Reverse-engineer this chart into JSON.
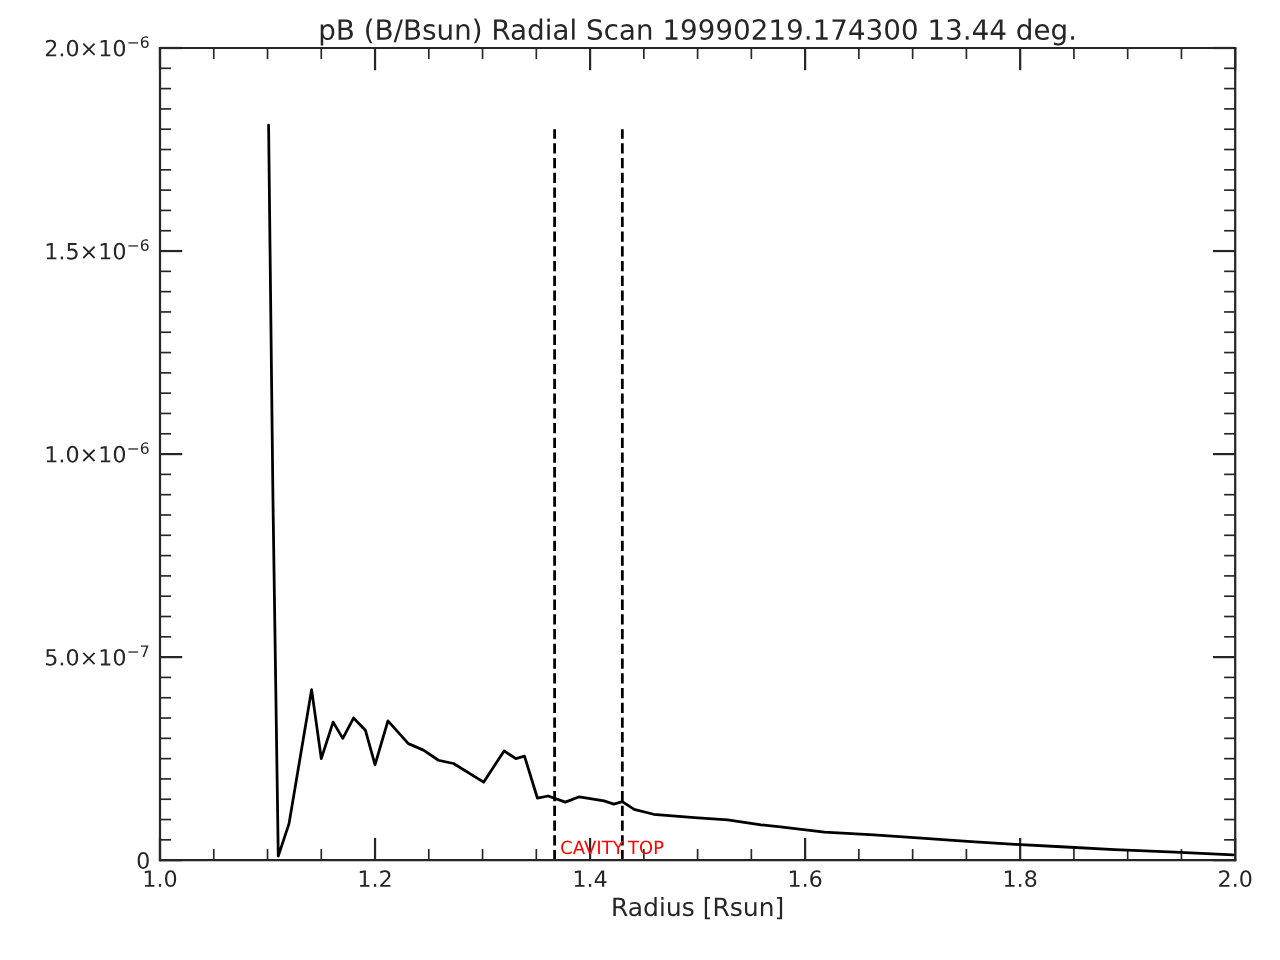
{
  "chart_data": {
    "type": "line",
    "title": "pB (B/Bsun) Radial Scan 19990219.174300 13.44 deg.",
    "xlabel": "Radius [Rsun]",
    "series": [
      {
        "color": "#000000",
        "x": [
          1.101,
          1.105,
          1.11,
          1.12,
          1.141,
          1.15,
          1.161,
          1.17,
          1.18,
          1.191,
          1.2,
          1.212,
          1.231,
          1.245,
          1.259,
          1.273,
          1.301,
          1.32,
          1.331,
          1.339,
          1.351,
          1.361,
          1.377,
          1.39,
          1.413,
          1.422,
          1.43,
          1.441,
          1.459,
          1.497,
          1.528,
          1.559,
          1.577,
          1.618,
          1.664,
          1.708,
          1.751,
          1.795,
          1.838,
          1.888,
          1.944,
          1.998
        ],
        "values": [
          1.81e-06,
          9e-07,
          1e-08,
          9e-08,
          4.2e-07,
          2.5e-07,
          3.4e-07,
          3e-07,
          3.5e-07,
          3.2e-07,
          2.35e-07,
          3.43e-07,
          2.87e-07,
          2.71e-07,
          2.46e-07,
          2.38e-07,
          1.92e-07,
          2.69e-07,
          2.5e-07,
          2.56e-07,
          1.53e-07,
          1.58e-07,
          1.43e-07,
          1.56e-07,
          1.46e-07,
          1.38e-07,
          1.44e-07,
          1.25e-07,
          1.13e-07,
          1.05e-07,
          9.9e-08,
          8.7e-08,
          8.2e-08,
          6.9e-08,
          6.2e-08,
          5.4e-08,
          4.6e-08,
          3.9e-08,
          3.3e-08,
          2.6e-08,
          2e-08,
          1.3e-08
        ]
      }
    ],
    "xlim": [
      1.0,
      2.0
    ],
    "xticks": [
      {
        "value": 1.0,
        "label": "1.0"
      },
      1.2,
      1.4,
      1.6,
      1.8,
      {
        "value": 2.0,
        "label": "2.0"
      }
    ],
    "ylim": [
      0,
      2e-06
    ],
    "yticks": [
      {
        "value": 0,
        "label": "0"
      },
      {
        "value": 5e-07,
        "label": "5.0×10$^{−7}$"
      },
      {
        "value": 1e-06,
        "label": "1.0×10$^{−6}$"
      },
      {
        "value": 1.5e-06,
        "label": "1.5×10$^{−6}$"
      },
      {
        "value": 2e-06,
        "label": "2.0×10$^{−6}$"
      }
    ],
    "ref_lines": [
      {
        "axis": "x",
        "value": 1.367,
        "label": "CAVITY",
        "line_style": "dashed"
      },
      {
        "axis": "x",
        "value": 1.43,
        "label": "TOP",
        "line_style": "dashed"
      }
    ],
    "grid": false,
    "line_style": "solid",
    "marker": "none"
  }
}
